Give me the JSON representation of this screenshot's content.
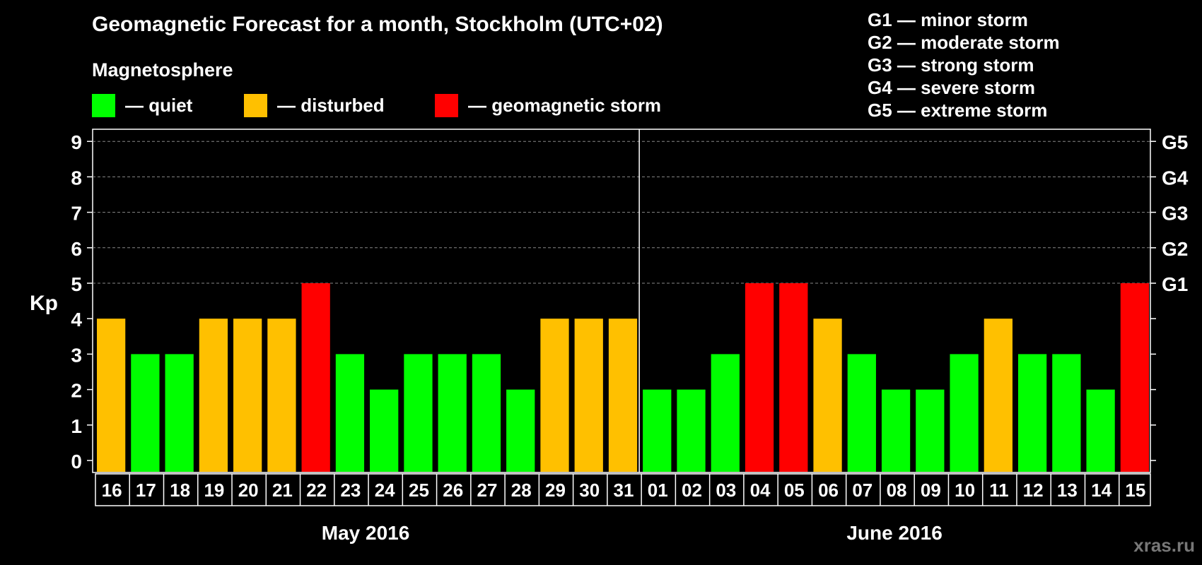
{
  "header": {
    "title": "Geomagnetic Forecast for a month, Stockholm (UTC+02)"
  },
  "legend": {
    "heading": "Magnetosphere",
    "items": [
      {
        "label": "— quiet",
        "color": "#00ff00"
      },
      {
        "label": "— disturbed",
        "color": "#ffc000"
      },
      {
        "label": "— geomagnetic storm",
        "color": "#ff0000"
      }
    ]
  },
  "storm_legend": [
    "G1 — minor storm",
    "G2 — moderate storm",
    "G3 — strong storm",
    "G4 — severe storm",
    "G5 — extreme storm"
  ],
  "watermark": "xras.ru",
  "chart_data": {
    "type": "bar",
    "ylabel": "Kp",
    "ylim": [
      0,
      9
    ],
    "yticks": [
      "0",
      "1",
      "2",
      "3",
      "4",
      "5",
      "6",
      "7",
      "8",
      "9"
    ],
    "right_ticks": [
      {
        "value": 5,
        "label": "G1"
      },
      {
        "value": 6,
        "label": "G2"
      },
      {
        "value": 7,
        "label": "G3"
      },
      {
        "value": 8,
        "label": "G4"
      },
      {
        "value": 9,
        "label": "G5"
      }
    ],
    "grid": true,
    "categories": [
      "16",
      "17",
      "18",
      "19",
      "20",
      "21",
      "22",
      "23",
      "24",
      "25",
      "26",
      "27",
      "28",
      "29",
      "30",
      "31",
      "01",
      "02",
      "03",
      "04",
      "05",
      "06",
      "07",
      "08",
      "09",
      "10",
      "11",
      "12",
      "13",
      "14",
      "15"
    ],
    "values": [
      4,
      3,
      3,
      4,
      4,
      4,
      5,
      3,
      2,
      3,
      3,
      3,
      2,
      4,
      4,
      4,
      2,
      2,
      3,
      5,
      5,
      4,
      3,
      2,
      2,
      3,
      4,
      3,
      3,
      2,
      5
    ],
    "months": [
      {
        "label": "May 2016",
        "start_index": 0,
        "end_index": 15
      },
      {
        "label": "June 2016",
        "start_index": 16,
        "end_index": 30
      }
    ],
    "colors": {
      "quiet": "#00ff00",
      "disturbed": "#ffc000",
      "storm": "#ff0000"
    },
    "thresholds": {
      "disturbed_min": 4,
      "storm_min": 5
    }
  }
}
